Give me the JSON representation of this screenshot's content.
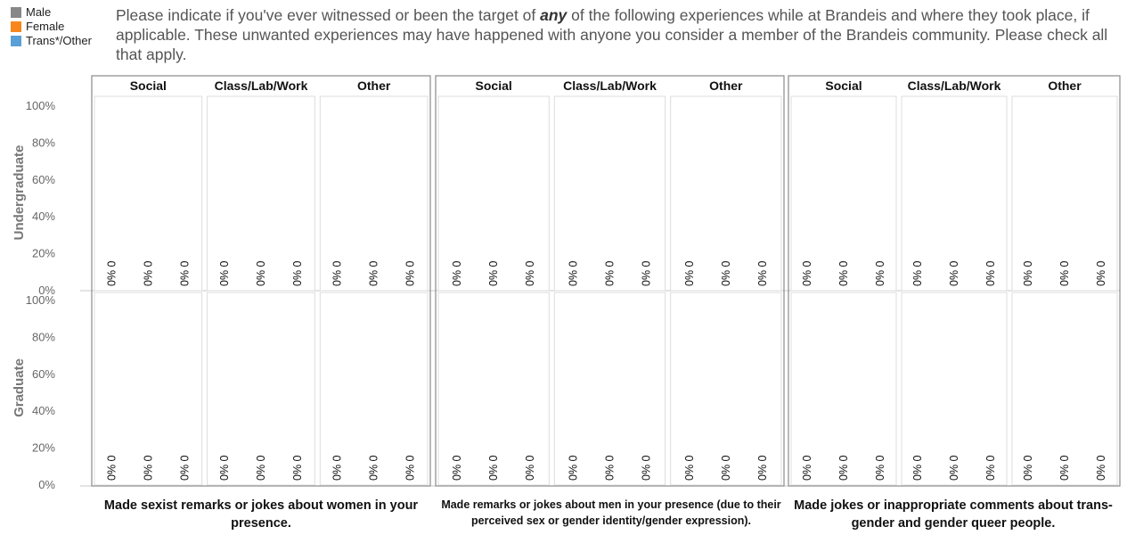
{
  "chart_data": {
    "type": "bar",
    "values_are_placeholders": true,
    "legend": [
      {
        "name": "Male",
        "color": "#888888"
      },
      {
        "name": "Female",
        "color": "#f7861c"
      },
      {
        "name": "Trans*/Other",
        "color": "#5a9fd6"
      }
    ],
    "y_ticks": [
      "100%",
      "80%",
      "60%",
      "40%",
      "20%",
      "0%"
    ],
    "ylim": [
      0,
      100
    ],
    "row_labels": [
      "Undergraduate",
      "Graduate"
    ],
    "columns": [
      "Social",
      "Class/Lab/Work",
      "Other"
    ],
    "panels": [
      {
        "caption": "Made sexist remarks or jokes about women in your presence.",
        "cells": [
          [
            [
              {
                "pct": "0%",
                "n": "0",
                "v": 0
              },
              {
                "pct": "0%",
                "n": "0",
                "v": 0
              },
              {
                "pct": "0%",
                "n": "0",
                "v": 0
              }
            ],
            [
              {
                "pct": "0%",
                "n": "0",
                "v": 0
              },
              {
                "pct": "0%",
                "n": "0",
                "v": 0
              },
              {
                "pct": "0%",
                "n": "0",
                "v": 0
              }
            ],
            [
              {
                "pct": "0%",
                "n": "0",
                "v": 0
              },
              {
                "pct": "0%",
                "n": "0",
                "v": 0
              },
              {
                "pct": "0%",
                "n": "0",
                "v": 0
              }
            ]
          ],
          [
            [
              {
                "pct": "0%",
                "n": "0",
                "v": 0
              },
              {
                "pct": "0%",
                "n": "0",
                "v": 0
              },
              {
                "pct": "0%",
                "n": "0",
                "v": 0
              }
            ],
            [
              {
                "pct": "0%",
                "n": "0",
                "v": 0
              },
              {
                "pct": "0%",
                "n": "0",
                "v": 0
              },
              {
                "pct": "0%",
                "n": "0",
                "v": 0
              }
            ],
            [
              {
                "pct": "0%",
                "n": "0",
                "v": 0
              },
              {
                "pct": "0%",
                "n": "0",
                "v": 0
              },
              {
                "pct": "0%",
                "n": "0",
                "v": 0
              }
            ]
          ]
        ]
      },
      {
        "caption": "Made remarks or jokes about men in your presence (due to their perceived sex or gender identity/gender expression).",
        "cells": [
          [
            [
              {
                "pct": "0%",
                "n": "0",
                "v": 0
              },
              {
                "pct": "0%",
                "n": "0",
                "v": 0
              },
              {
                "pct": "0%",
                "n": "0",
                "v": 0
              }
            ],
            [
              {
                "pct": "0%",
                "n": "0",
                "v": 0
              },
              {
                "pct": "0%",
                "n": "0",
                "v": 0
              },
              {
                "pct": "0%",
                "n": "0",
                "v": 0
              }
            ],
            [
              {
                "pct": "0%",
                "n": "0",
                "v": 0
              },
              {
                "pct": "0%",
                "n": "0",
                "v": 0
              },
              {
                "pct": "0%",
                "n": "0",
                "v": 0
              }
            ]
          ],
          [
            [
              {
                "pct": "0%",
                "n": "0",
                "v": 0
              },
              {
                "pct": "0%",
                "n": "0",
                "v": 0
              },
              {
                "pct": "0%",
                "n": "0",
                "v": 0
              }
            ],
            [
              {
                "pct": "0%",
                "n": "0",
                "v": 0
              },
              {
                "pct": "0%",
                "n": "0",
                "v": 0
              },
              {
                "pct": "0%",
                "n": "0",
                "v": 0
              }
            ],
            [
              {
                "pct": "0%",
                "n": "0",
                "v": 0
              },
              {
                "pct": "0%",
                "n": "0",
                "v": 0
              },
              {
                "pct": "0%",
                "n": "0",
                "v": 0
              }
            ]
          ]
        ]
      },
      {
        "caption": "Made jokes or inappropriate comments about trans-gender and gender queer people.",
        "cells": [
          [
            [
              {
                "pct": "0%",
                "n": "0",
                "v": 0
              },
              {
                "pct": "0%",
                "n": "0",
                "v": 0
              },
              {
                "pct": "0%",
                "n": "0",
                "v": 0
              }
            ],
            [
              {
                "pct": "0%",
                "n": "0",
                "v": 0
              },
              {
                "pct": "0%",
                "n": "0",
                "v": 0
              },
              {
                "pct": "0%",
                "n": "0",
                "v": 0
              }
            ],
            [
              {
                "pct": "0%",
                "n": "0",
                "v": 0
              },
              {
                "pct": "0%",
                "n": "0",
                "v": 0
              },
              {
                "pct": "0%",
                "n": "0",
                "v": 0
              }
            ]
          ],
          [
            [
              {
                "pct": "0%",
                "n": "0",
                "v": 0
              },
              {
                "pct": "0%",
                "n": "0",
                "v": 0
              },
              {
                "pct": "0%",
                "n": "0",
                "v": 0
              }
            ],
            [
              {
                "pct": "0%",
                "n": "0",
                "v": 0
              },
              {
                "pct": "0%",
                "n": "0",
                "v": 0
              },
              {
                "pct": "0%",
                "n": "0",
                "v": 0
              }
            ],
            [
              {
                "pct": "0%",
                "n": "0",
                "v": 0
              },
              {
                "pct": "0%",
                "n": "0",
                "v": 0
              },
              {
                "pct": "0%",
                "n": "0",
                "v": 0
              }
            ]
          ]
        ]
      }
    ]
  },
  "question": {
    "before": "Please indicate if you've ever witnessed or been the target of ",
    "emphasis": "any",
    "after": " of the following experiences while at Brandeis and where they took place, if applicable. These unwanted experiences may have happened with anyone you consider a member of the Brandeis community. Please check all that apply."
  }
}
